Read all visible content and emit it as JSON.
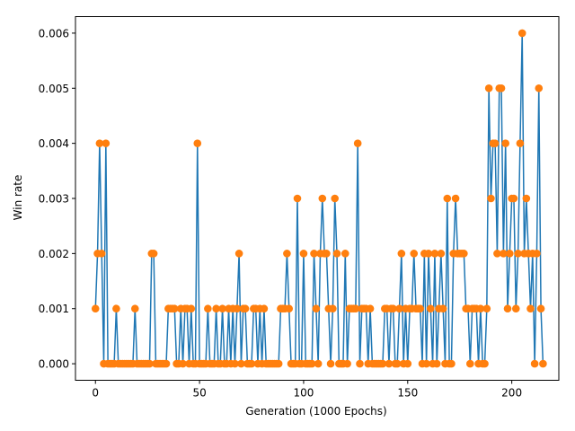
{
  "chart_data": {
    "type": "line",
    "title": "",
    "xlabel": "Generation (1000 Epochs)",
    "ylabel": "Win rate",
    "xlim": [
      -9.6,
      222.6
    ],
    "ylim": [
      -0.0003,
      0.0063
    ],
    "xticks": [
      0,
      50,
      100,
      150,
      200
    ],
    "yticks": [
      0.0,
      0.001,
      0.002,
      0.003,
      0.004,
      0.005,
      0.006
    ],
    "ytick_labels": [
      "0.000",
      "0.001",
      "0.002",
      "0.003",
      "0.004",
      "0.005",
      "0.006"
    ],
    "grid": false,
    "line_color": "#1f77b4",
    "marker_color": "#ff7f0e",
    "x_start": 0,
    "values": [
      0.001,
      0.002,
      0.004,
      0.002,
      0,
      0.004,
      0,
      0,
      0,
      0,
      0.001,
      0,
      0,
      0,
      0,
      0,
      0,
      0,
      0,
      0.001,
      0,
      0,
      0,
      0,
      0,
      0,
      0,
      0.002,
      0.002,
      0,
      0,
      0,
      0,
      0,
      0,
      0.001,
      0.001,
      0.001,
      0.001,
      0,
      0,
      0.001,
      0,
      0.001,
      0.001,
      0,
      0.001,
      0,
      0,
      0.004,
      0,
      0,
      0,
      0,
      0.001,
      0,
      0,
      0,
      0.001,
      0,
      0,
      0.001,
      0,
      0,
      0.001,
      0,
      0.001,
      0,
      0.001,
      0.002,
      0,
      0.001,
      0.001,
      0,
      0,
      0,
      0.001,
      0.001,
      0,
      0.001,
      0,
      0.001,
      0,
      0,
      0,
      0,
      0,
      0,
      0,
      0.001,
      0.001,
      0.001,
      0.002,
      0.001,
      0,
      0,
      0,
      0.003,
      0,
      0,
      0.002,
      0,
      0,
      0,
      0,
      0.002,
      0.001,
      0,
      0.002,
      0.003,
      0.002,
      0.002,
      0.001,
      0,
      0.001,
      0.003,
      0.002,
      0,
      0,
      0,
      0.002,
      0,
      0.001,
      0.001,
      0.001,
      0.001,
      0.004,
      0,
      0.001,
      0.001,
      0.001,
      0,
      0.001,
      0,
      0,
      0,
      0,
      0,
      0,
      0.001,
      0.001,
      0,
      0.001,
      0.001,
      0,
      0,
      0.001,
      0.002,
      0,
      0.001,
      0,
      0.001,
      0.001,
      0.002,
      0.001,
      0.001,
      0.001,
      0,
      0.002,
      0,
      0.002,
      0.001,
      0,
      0.002,
      0,
      0.001,
      0.002,
      0.001,
      0,
      0.003,
      0,
      0,
      0.002,
      0.003,
      0.002,
      0.002,
      0.002,
      0.002,
      0.001,
      0.001,
      0,
      0.001,
      0.001,
      0.001,
      0,
      0.001,
      0,
      0,
      0.001,
      0.005,
      0.003,
      0.004,
      0.004,
      0.002,
      0.005,
      0.005,
      0.002,
      0.004,
      0.001,
      0.002,
      0.003,
      0.003,
      0.001,
      0.002,
      0.004,
      0.006,
      0.002,
      0.003,
      0.002,
      0.001,
      0.002,
      0,
      0.002,
      0.005,
      0.001,
      0
    ]
  }
}
